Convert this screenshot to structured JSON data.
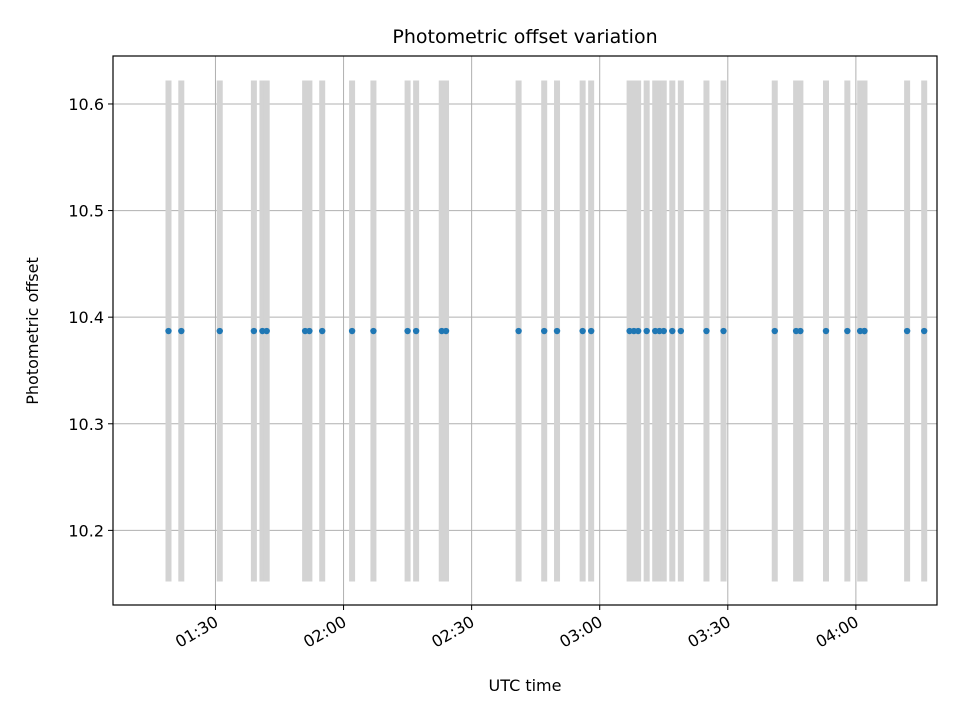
{
  "chart_data": {
    "type": "scatter",
    "title": "Photometric offset variation",
    "xlabel": "UTC time",
    "ylabel": "Photometric offset",
    "x_range": [
      "01:06",
      "04:19"
    ],
    "ylim": [
      10.13,
      10.645
    ],
    "x_ticks": [
      "01:30",
      "02:00",
      "02:30",
      "03:00",
      "03:30",
      "04:00"
    ],
    "y_ticks": [
      "10.2",
      "10.3",
      "10.4",
      "10.5",
      "10.6"
    ],
    "grid": true,
    "colors": {
      "points": "#1f77b4",
      "error_bars": "#d3d3d3",
      "grid": "#b0b0b0"
    },
    "error_bar_range": [
      10.152,
      10.622
    ],
    "series": [
      {
        "x": [
          "01:19",
          "01:22",
          "01:31",
          "01:39",
          "01:41",
          "01:42",
          "01:51",
          "01:52",
          "01:55",
          "02:02",
          "02:07",
          "02:15",
          "02:17",
          "02:23",
          "02:24",
          "02:41",
          "02:47",
          "02:50",
          "02:56",
          "02:58",
          "03:07",
          "03:08",
          "03:09",
          "03:11",
          "03:13",
          "03:14",
          "03:15",
          "03:17",
          "03:19",
          "03:25",
          "03:29",
          "03:41",
          "03:46",
          "03:47",
          "03:53",
          "03:58",
          "04:01",
          "04:02",
          "04:02",
          "04:12",
          "04:16"
        ],
        "y": [
          10.387,
          10.387,
          10.387,
          10.387,
          10.387,
          10.387,
          10.387,
          10.387,
          10.387,
          10.387,
          10.387,
          10.387,
          10.387,
          10.387,
          10.387,
          10.387,
          10.387,
          10.387,
          10.387,
          10.387,
          10.387,
          10.387,
          10.387,
          10.387,
          10.387,
          10.387,
          10.387,
          10.387,
          10.387,
          10.387,
          10.387,
          10.387,
          10.387,
          10.387,
          10.387,
          10.387,
          10.387,
          10.387,
          10.387,
          10.387,
          10.387
        ]
      }
    ]
  }
}
